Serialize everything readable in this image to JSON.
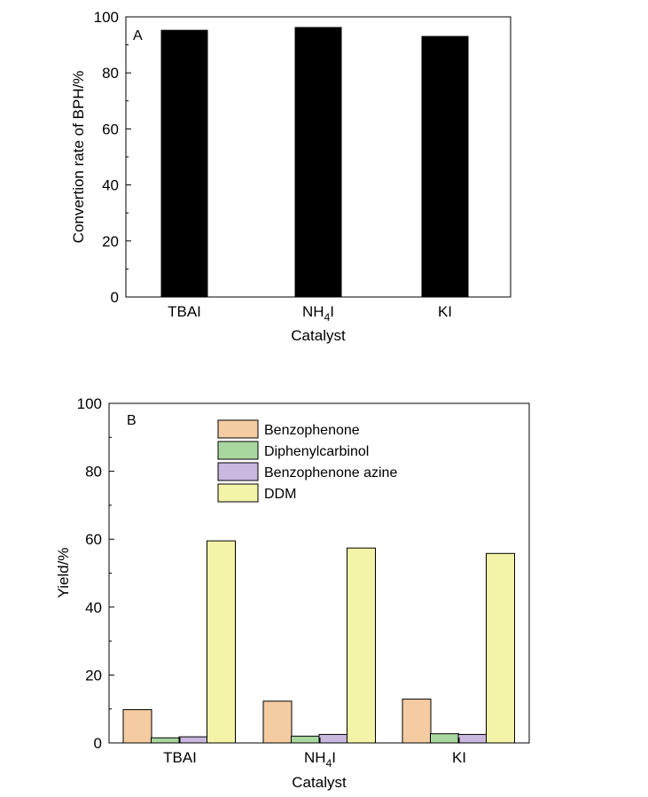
{
  "chart_data": [
    {
      "type": "bar",
      "panel_label": "A",
      "categories": [
        "TBAI",
        "NH4I",
        "KI"
      ],
      "values": [
        95.2,
        96.2,
        93.0
      ],
      "series": [
        {
          "values": [
            95.2,
            96.2,
            93.0
          ],
          "color": "#000000"
        }
      ],
      "title": "",
      "xlabel": "Catalyst",
      "ylabel": "Convertion rate of BPH/%",
      "ylim": [
        0,
        100
      ],
      "yticks": [
        0,
        20,
        40,
        60,
        80,
        100
      ]
    },
    {
      "type": "bar",
      "panel_label": "B",
      "categories": [
        "TBAI",
        "NH4I",
        "KI"
      ],
      "series": [
        {
          "name": "Benzophenone",
          "values": [
            9.8,
            12.3,
            12.9
          ],
          "color": "#f5cba2"
        },
        {
          "name": "Diphenylcarbinol",
          "values": [
            1.5,
            2.0,
            2.7
          ],
          "color": "#a8d8a0"
        },
        {
          "name": "Benzophenone azine",
          "values": [
            1.8,
            2.5,
            2.5
          ],
          "color": "#c9b7df"
        },
        {
          "name": "DDM",
          "values": [
            59.5,
            57.4,
            55.8
          ],
          "color": "#f4f4a8"
        }
      ],
      "title": "",
      "xlabel": "Catalyst",
      "ylabel": "Yield/%",
      "ylim": [
        0,
        100
      ],
      "yticks": [
        0,
        20,
        40,
        60,
        80,
        100
      ],
      "legend_position": "top-center"
    }
  ]
}
